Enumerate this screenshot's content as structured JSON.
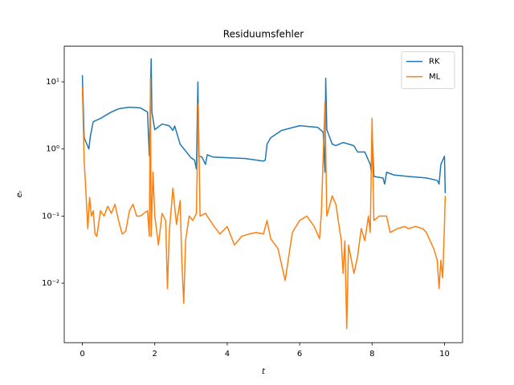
{
  "chart_data": {
    "type": "line",
    "title": "Residuumsfehler",
    "xlabel": "t",
    "ylabel": "eᵣ",
    "xlim": [
      -0.5,
      10.5
    ],
    "xticks": [
      0,
      2,
      4,
      6,
      8,
      10
    ],
    "ylim": [
      0.0013,
      34
    ],
    "yscale": "log",
    "yticks": [
      {
        "value": 0.01,
        "label": "10⁻²"
      },
      {
        "value": 0.1,
        "label": "10⁻¹"
      },
      {
        "value": 1,
        "label": "10⁰"
      },
      {
        "value": 10,
        "label": "10¹"
      }
    ],
    "legend": "upper right",
    "series": [
      {
        "name": "RK",
        "color": "#1f77b4",
        "x": [
          0,
          0.05,
          0.18,
          0.22,
          0.3,
          0.5,
          0.8,
          1.0,
          1.3,
          1.6,
          1.8,
          1.85,
          1.9,
          1.92,
          2.0,
          2.2,
          2.4,
          2.5,
          2.55,
          2.7,
          3.0,
          3.1,
          3.15,
          3.19,
          3.22,
          3.3,
          3.4,
          3.45,
          3.6,
          4.0,
          4.5,
          5.0,
          5.05,
          5.1,
          5.2,
          5.5,
          6.0,
          6.5,
          6.65,
          6.7,
          6.72,
          6.75,
          6.9,
          7.0,
          7.2,
          7.5,
          7.6,
          7.8,
          7.95,
          7.98,
          8.0,
          8.05,
          8.3,
          8.35,
          8.4,
          8.6,
          9.0,
          9.5,
          9.8,
          9.85,
          9.9,
          9.95,
          10.0,
          10.02
        ],
        "values": [
          12.6,
          1.47,
          1.0,
          1.55,
          2.55,
          2.85,
          3.55,
          3.97,
          4.2,
          4.1,
          3.55,
          0.78,
          22,
          3.55,
          1.94,
          2.35,
          2.22,
          1.89,
          2.2,
          1.18,
          0.74,
          0.68,
          0.5,
          10,
          0.78,
          0.76,
          0.59,
          0.82,
          0.76,
          0.74,
          0.72,
          0.66,
          0.68,
          1.18,
          1.47,
          1.89,
          2.22,
          2.1,
          1.78,
          0.45,
          11.3,
          1.94,
          1.18,
          1.12,
          1.25,
          1.12,
          0.9,
          0.9,
          0.59,
          0.45,
          2.0,
          0.39,
          0.37,
          0.3,
          0.45,
          0.41,
          0.39,
          0.37,
          0.34,
          0.3,
          0.59,
          0.68,
          0.78,
          0.22
        ]
      },
      {
        "name": "ML",
        "color": "#ff7f0e",
        "x": [
          0,
          0.05,
          0.1,
          0.15,
          0.2,
          0.25,
          0.3,
          0.35,
          0.4,
          0.5,
          0.6,
          0.7,
          0.8,
          0.9,
          1.0,
          1.1,
          1.2,
          1.3,
          1.4,
          1.5,
          1.6,
          1.7,
          1.8,
          1.85,
          1.88,
          1.9,
          1.95,
          2.0,
          2.1,
          2.2,
          2.3,
          2.35,
          2.4,
          2.5,
          2.6,
          2.7,
          2.75,
          2.8,
          2.85,
          2.95,
          3.05,
          3.15,
          3.2,
          3.25,
          3.4,
          3.6,
          3.8,
          4.0,
          4.2,
          4.4,
          4.6,
          4.8,
          5.0,
          5.1,
          5.2,
          5.4,
          5.6,
          5.8,
          6.0,
          6.2,
          6.4,
          6.55,
          6.6,
          6.7,
          6.75,
          6.9,
          7.0,
          7.15,
          7.2,
          7.25,
          7.3,
          7.35,
          7.5,
          7.6,
          7.7,
          7.8,
          7.9,
          7.95,
          8.0,
          8.05,
          8.2,
          8.4,
          8.5,
          8.7,
          8.9,
          9.0,
          9.2,
          9.4,
          9.5,
          9.6,
          9.7,
          9.8,
          9.85,
          9.9,
          9.95,
          10.0,
          10.02
        ],
        "values": [
          8.1,
          0.68,
          0.22,
          0.065,
          0.19,
          0.1,
          0.12,
          0.054,
          0.05,
          0.12,
          0.1,
          0.14,
          0.11,
          0.15,
          0.086,
          0.054,
          0.06,
          0.12,
          0.15,
          0.1,
          0.1,
          0.11,
          0.12,
          0.05,
          11.3,
          0.05,
          0.45,
          0.1,
          0.037,
          0.11,
          0.086,
          0.0083,
          0.057,
          0.26,
          0.075,
          0.17,
          0.019,
          0.005,
          0.043,
          0.1,
          0.086,
          0.11,
          4.7,
          0.1,
          0.11,
          0.075,
          0.054,
          0.07,
          0.037,
          0.05,
          0.054,
          0.057,
          0.054,
          0.086,
          0.046,
          0.033,
          0.011,
          0.057,
          0.086,
          0.1,
          0.07,
          0.046,
          0.11,
          5,
          0.1,
          0.2,
          0.15,
          0.043,
          0.014,
          0.043,
          0.0021,
          0.037,
          0.014,
          0.025,
          0.065,
          0.043,
          0.1,
          0.057,
          2.85,
          0.086,
          0.1,
          0.1,
          0.057,
          0.065,
          0.07,
          0.065,
          0.07,
          0.065,
          0.057,
          0.043,
          0.033,
          0.022,
          0.0083,
          0.022,
          0.012,
          0.075,
          0.2
        ]
      }
    ]
  }
}
